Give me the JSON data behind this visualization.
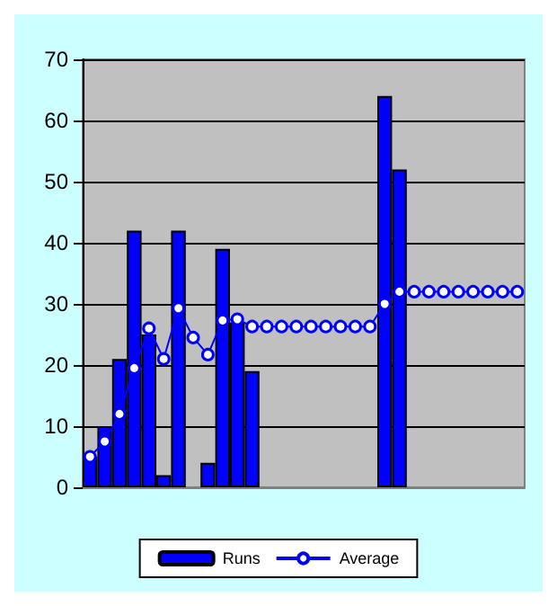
{
  "chart_data": {
    "type": "bar",
    "categories": [
      null,
      null,
      null,
      null,
      null,
      null,
      null,
      null,
      null,
      null,
      null,
      null,
      null,
      null,
      null,
      null,
      null,
      null,
      null,
      null,
      null,
      null,
      null,
      null,
      null,
      null,
      null,
      null,
      null,
      null
    ],
    "series": [
      {
        "name": "Runs",
        "color": "#0000ff",
        "values": [
          5,
          10,
          21,
          42,
          25,
          2,
          42,
          null,
          4,
          39,
          27,
          19,
          null,
          null,
          null,
          null,
          null,
          null,
          null,
          null,
          64,
          52,
          null,
          null,
          null,
          null,
          null,
          null,
          null,
          null
        ]
      },
      {
        "name": "Average",
        "type": "line",
        "color": "#0000ff",
        "marker": "circle",
        "values": [
          5,
          7.5,
          12,
          19.5,
          26,
          21,
          29.3,
          24.5,
          21.7,
          27.3,
          27.5,
          26.3,
          26.3,
          26.3,
          26.3,
          26.3,
          26.3,
          26.3,
          26.3,
          26.3,
          30,
          32,
          32,
          32,
          32,
          32,
          32,
          32,
          32,
          32
        ]
      }
    ],
    "ylim": [
      0,
      70
    ],
    "yticks": [
      0,
      10,
      20,
      30,
      40,
      50,
      60,
      70
    ],
    "grid": "y",
    "legend": "bottom",
    "tick_labels": "y"
  }
}
